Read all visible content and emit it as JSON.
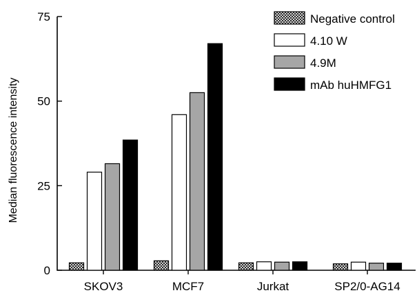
{
  "chart_data": {
    "type": "bar",
    "categories": [
      "SKOV3",
      "MCF7",
      "Jurkat",
      "SP2/0-AG14"
    ],
    "series": [
      {
        "name": "Negative control",
        "values": [
          2.2,
          2.8,
          2.2,
          1.9
        ],
        "fill": "pattern-crosshatch"
      },
      {
        "name": "4.10 W",
        "values": [
          29,
          46,
          2.5,
          2.4
        ],
        "fill": "#ffffff"
      },
      {
        "name": "4.9M",
        "values": [
          31.5,
          52.5,
          2.4,
          2.1
        ],
        "fill": "#a6a6a6"
      },
      {
        "name": "mAb huHMFG1",
        "values": [
          38.5,
          67,
          2.5,
          2.1
        ],
        "fill": "#000000"
      }
    ],
    "ylabel": "Median fluorescence intensity",
    "xlabel": "",
    "ylim": [
      0,
      75
    ],
    "yticks": [
      "0",
      "25",
      "50",
      "75"
    ],
    "legend_position": "top-right",
    "grid": false
  }
}
